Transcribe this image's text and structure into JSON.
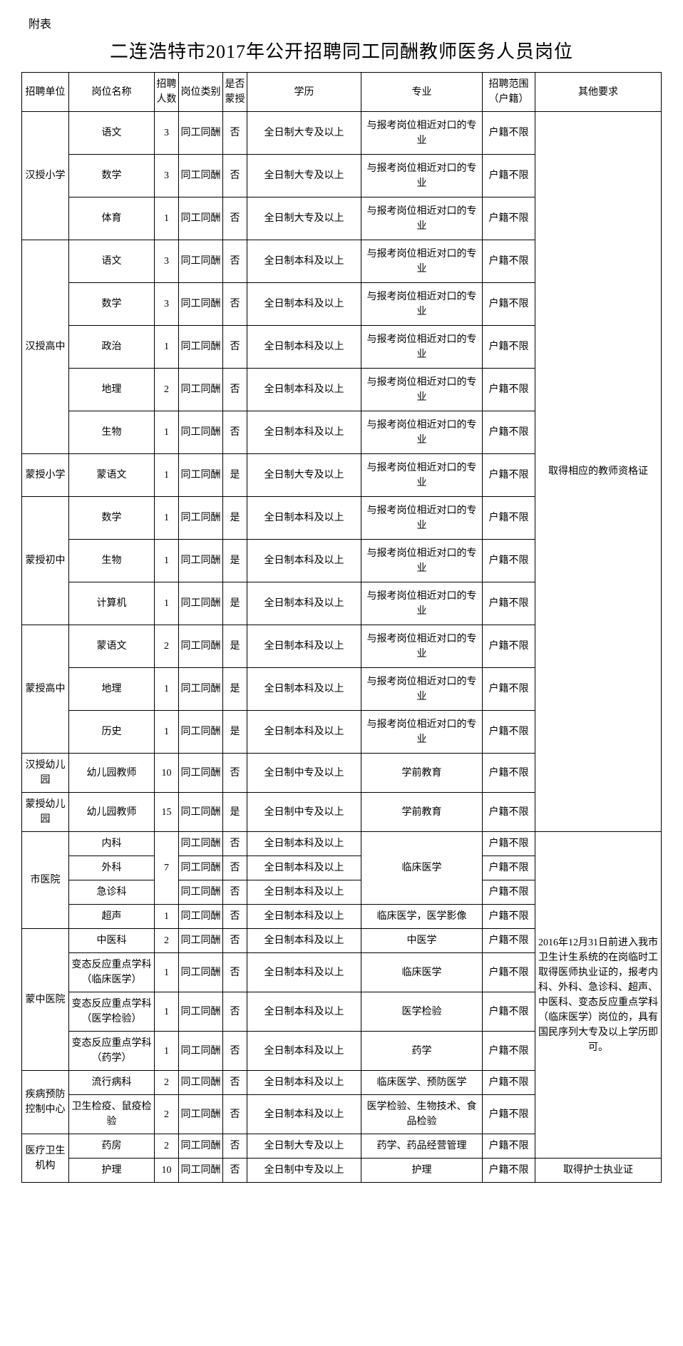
{
  "attachment_label": "附表",
  "title": "二连浩特市2017年公开招聘同工同酬教师医务人员岗位",
  "headers": {
    "unit": "招聘单位",
    "position": "岗位名称",
    "count": "招聘人数",
    "type": "岗位类别",
    "mongolian": "是否蒙授",
    "education": "学历",
    "major": "专业",
    "scope": "招聘范围（户籍）",
    "other": "其他要求"
  },
  "common": {
    "type_equal": "同工同酬",
    "no": "否",
    "yes": "是",
    "edu_dazhuan": "全日制大专及以上",
    "edu_benke": "全日制本科及以上",
    "edu_zhongzhuan": "全日制中专及以上",
    "major_match": "与报考岗位相近对口的专业",
    "scope_unlimited": "户籍不限"
  },
  "units": {
    "han_primary": "汉授小学",
    "han_high": "汉授高中",
    "meng_primary": "蒙授小学",
    "meng_middle": "蒙授初中",
    "meng_high": "蒙授高中",
    "han_kindergarten": "汉授幼儿园",
    "meng_kindergarten": "蒙授幼儿园",
    "city_hospital": "市医院",
    "meng_hospital": "蒙中医院",
    "cdc": "疾病预防控制中心",
    "health_org": "医疗卫生机构"
  },
  "positions": {
    "chinese": "语文",
    "math": "数学",
    "pe": "体育",
    "politics": "政治",
    "geography": "地理",
    "biology": "生物",
    "mongolian_lang": "蒙语文",
    "computer": "计算机",
    "history": "历史",
    "kindergarten_teacher": "幼儿园教师",
    "internal": "内科",
    "surgery": "外科",
    "emergency": "急诊科",
    "ultrasound": "超声",
    "tcm": "中医科",
    "allergy_clinical": "变态反应重点学科（临床医学）",
    "allergy_test": "变态反应重点学科（医学检验）",
    "allergy_pharmacy": "变态反应重点学科（药学）",
    "epidemiology": "流行病科",
    "sanitation": "卫生检疫、鼠疫检验",
    "pharmacy": "药房",
    "nursing": "护理"
  },
  "majors": {
    "preschool": "学前教育",
    "clinical": "临床医学",
    "clinical_imaging": "临床医学，医学影像",
    "tcm": "中医学",
    "medical_test": "医学检验",
    "pharmacy": "药学",
    "clinical_preventive": "临床医学、预防医学",
    "test_bio_food": "医学检验、生物技术、食品检验",
    "pharmacy_mgmt": "药学、药品经营管理",
    "nursing": "护理"
  },
  "other_req": {
    "teacher_cert": "取得相应的教师资格证",
    "medical_note": "2016年12月31日前进入我市卫生计生系统的在岗临时工取得医师执业证的，报考内科、外科、急诊科、超声、中医科、变态反应重点学科（临床医学）岗位的，具有国民序列大专及以上学历即可。",
    "nurse_cert": "取得护士执业证"
  },
  "counts": {
    "c1": "1",
    "c2": "2",
    "c3": "3",
    "c7": "7",
    "c10": "10",
    "c15": "15"
  }
}
